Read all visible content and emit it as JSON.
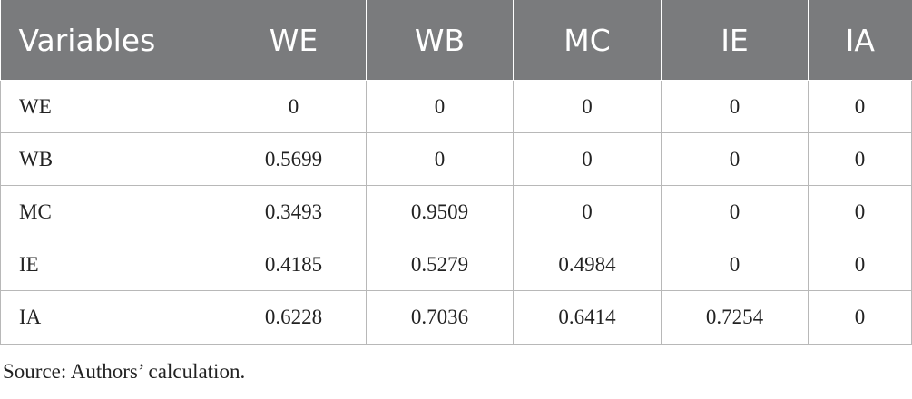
{
  "table": {
    "headers": [
      "Variables",
      "WE",
      "WB",
      "MC",
      "IE",
      "IA"
    ],
    "rows": [
      [
        "WE",
        "0",
        "0",
        "0",
        "0",
        "0"
      ],
      [
        "WB",
        "0.5699",
        "0",
        "0",
        "0",
        "0"
      ],
      [
        "MC",
        "0.3493",
        "0.9509",
        "0",
        "0",
        "0"
      ],
      [
        "IE",
        "0.4185",
        "0.5279",
        "0.4984",
        "0",
        "0"
      ],
      [
        "IA",
        "0.6228",
        "0.7036",
        "0.6414",
        "0.7254",
        "0"
      ]
    ]
  },
  "footer": {
    "source": "Source: Authors’ calculation."
  },
  "colors": {
    "header_bg": "#7a7b7d",
    "header_text": "#ffffff",
    "grid_line": "#b8b8b8",
    "body_text": "#222222"
  }
}
